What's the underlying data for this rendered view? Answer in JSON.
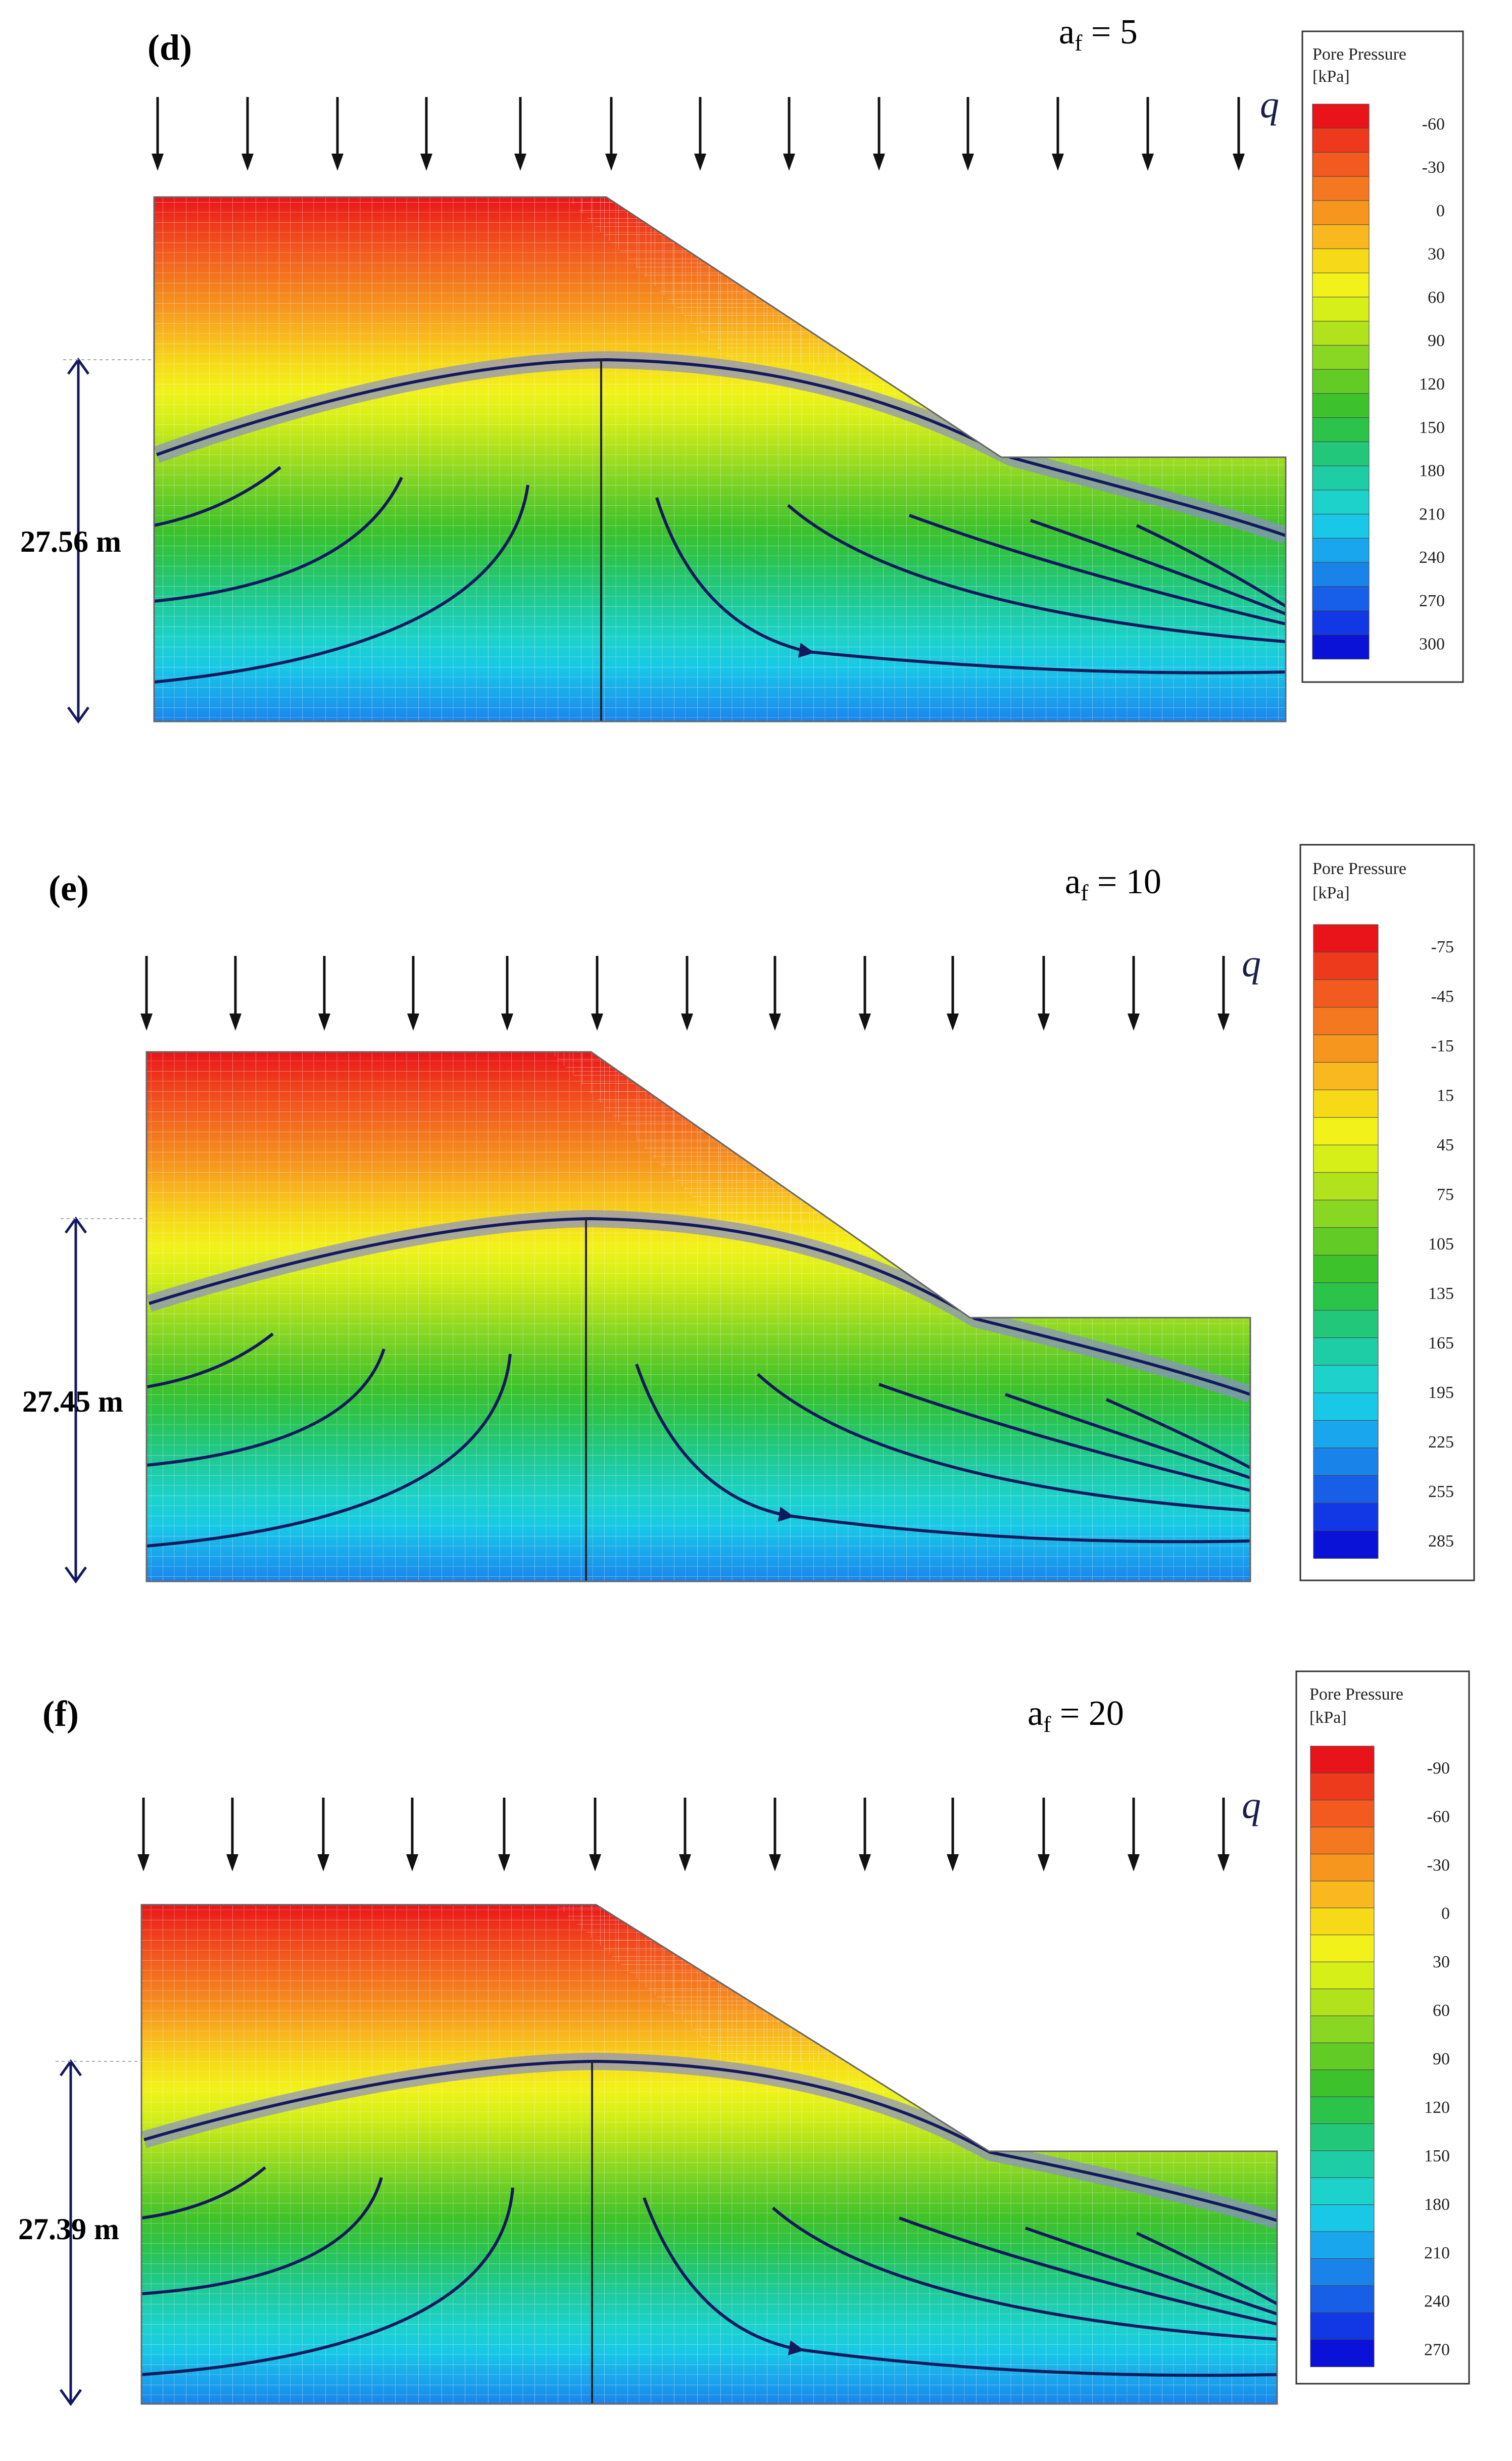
{
  "legend_title_line1": "Pore Pressure",
  "legend_title_line2": "[kPa]",
  "load_symbol": "q",
  "af_prefix": "a",
  "af_sub": "f",
  "colors": {
    "ramp": [
      "#e8141a",
      "#ee3a1c",
      "#f25a1f",
      "#f3781f",
      "#f6961f",
      "#f8b81e",
      "#f6da17",
      "#f2f21a",
      "#d6ef18",
      "#b1e21b",
      "#8ad723",
      "#62cb26",
      "#3ec22b",
      "#2cc34b",
      "#22c77a",
      "#1ecca6",
      "#1cd2cb",
      "#18c8e6",
      "#1aa6ec",
      "#1a83ea",
      "#175fe6",
      "#1138e4",
      "#0a12d8"
    ],
    "streamline": "#14195e",
    "phreatic_halo": "#8a8fc8",
    "mesh": "#ffffff",
    "frame": "#666666"
  },
  "panels": [
    {
      "id": "d",
      "label": "(d)",
      "af_value": "5",
      "height_label": "27.56 m",
      "legend_ticks": [
        "-60",
        "-30",
        "0",
        "30",
        "60",
        "90",
        "120",
        "150",
        "180",
        "210",
        "240",
        "270",
        "300"
      ]
    },
    {
      "id": "e",
      "label": "(e)",
      "af_value": "10",
      "height_label": "27.45 m",
      "legend_ticks": [
        "-75",
        "-45",
        "-15",
        "15",
        "45",
        "75",
        "105",
        "135",
        "165",
        "195",
        "225",
        "255",
        "285"
      ]
    },
    {
      "id": "f",
      "label": "(f)",
      "af_value": "20",
      "height_label": "27.39 m",
      "legend_ticks": [
        "-90",
        "-60",
        "-30",
        "0",
        "30",
        "60",
        "90",
        "120",
        "150",
        "180",
        "210",
        "240",
        "270"
      ]
    }
  ]
}
